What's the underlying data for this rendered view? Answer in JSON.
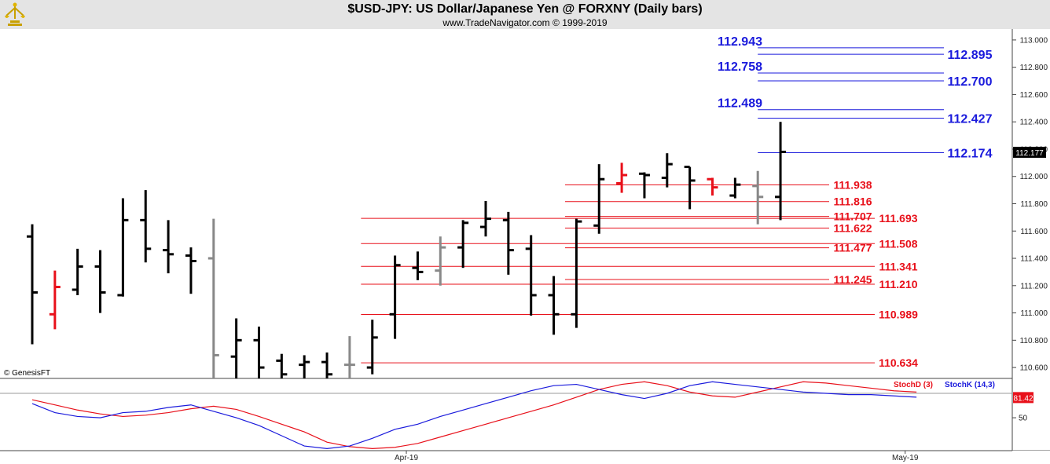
{
  "header": {
    "title": "$USD-JPY:  US Dollar/Japanese Yen @ FORXNY  (Daily bars)",
    "subtitle": "www.TradeNavigator.com © 1999-2019"
  },
  "watermark": "© GenesisFT",
  "colors": {
    "up": "#000000",
    "down": "#e8101a",
    "neutral": "#888888",
    "blue_level": "#1a1adc",
    "red_level": "#e8101a",
    "stochd": "#e8101a",
    "stochk": "#1a1adc"
  },
  "chart_data": {
    "type": "ohlc",
    "title": "$USD-JPY:  US Dollar/Japanese Yen @ FORXNY  (Daily bars)",
    "y_range": [
      110.52,
      113.08
    ],
    "y_ticks": [
      "113.000",
      "112.800",
      "112.600",
      "112.400",
      "112.200",
      "112.000",
      "111.800",
      "111.600",
      "111.400",
      "111.200",
      "111.000",
      "110.800",
      "110.600"
    ],
    "last_price": "112.177",
    "x_labels": [
      {
        "text": "Apr-19",
        "bar_index": 16.5
      },
      {
        "text": "May-19",
        "bar_index": 38.5
      }
    ],
    "bars": [
      {
        "o": 111.56,
        "h": 111.65,
        "l": 110.77,
        "c": 111.15,
        "color": "up"
      },
      {
        "o": 110.99,
        "h": 111.31,
        "l": 110.88,
        "c": 111.19,
        "color": "down"
      },
      {
        "o": 111.17,
        "h": 111.47,
        "l": 111.13,
        "c": 111.34,
        "color": "up"
      },
      {
        "o": 111.34,
        "h": 111.46,
        "l": 111.0,
        "c": 111.15,
        "color": "up"
      },
      {
        "o": 111.13,
        "h": 111.84,
        "l": 111.12,
        "c": 111.68,
        "color": "up"
      },
      {
        "o": 111.68,
        "h": 111.9,
        "l": 111.37,
        "c": 111.47,
        "color": "up"
      },
      {
        "o": 111.46,
        "h": 111.68,
        "l": 111.29,
        "c": 111.43,
        "color": "up"
      },
      {
        "o": 111.42,
        "h": 111.48,
        "l": 111.14,
        "c": 111.38,
        "color": "up"
      },
      {
        "o": 111.4,
        "h": 111.69,
        "l": 110.45,
        "c": 110.69,
        "color": "neutral"
      },
      {
        "o": 110.68,
        "h": 110.96,
        "l": 110.3,
        "c": 110.8,
        "color": "up"
      },
      {
        "o": 110.8,
        "h": 110.9,
        "l": 110.4,
        "c": 110.6,
        "color": "up"
      },
      {
        "o": 110.65,
        "h": 110.7,
        "l": 110.3,
        "c": 110.55,
        "color": "up"
      },
      {
        "o": 110.62,
        "h": 110.69,
        "l": 110.52,
        "c": 110.64,
        "color": "up"
      },
      {
        "o": 110.64,
        "h": 110.71,
        "l": 110.48,
        "c": 110.55,
        "color": "up"
      },
      {
        "o": 110.62,
        "h": 110.83,
        "l": 110.52,
        "c": 110.62,
        "color": "neutral"
      },
      {
        "o": 110.6,
        "h": 110.95,
        "l": 110.55,
        "c": 110.82,
        "color": "up"
      },
      {
        "o": 110.99,
        "h": 111.42,
        "l": 110.81,
        "c": 111.35,
        "color": "up"
      },
      {
        "o": 111.33,
        "h": 111.45,
        "l": 111.24,
        "c": 111.3,
        "color": "up"
      },
      {
        "o": 111.31,
        "h": 111.56,
        "l": 111.2,
        "c": 111.48,
        "color": "neutral"
      },
      {
        "o": 111.48,
        "h": 111.68,
        "l": 111.33,
        "c": 111.66,
        "color": "up"
      },
      {
        "o": 111.63,
        "h": 111.82,
        "l": 111.56,
        "c": 111.69,
        "color": "up"
      },
      {
        "o": 111.68,
        "h": 111.74,
        "l": 111.28,
        "c": 111.46,
        "color": "up"
      },
      {
        "o": 111.47,
        "h": 111.57,
        "l": 110.98,
        "c": 111.13,
        "color": "up"
      },
      {
        "o": 111.13,
        "h": 111.27,
        "l": 110.84,
        "c": 110.99,
        "color": "up"
      },
      {
        "o": 110.99,
        "h": 111.69,
        "l": 110.89,
        "c": 111.67,
        "color": "up"
      },
      {
        "o": 111.64,
        "h": 112.09,
        "l": 111.58,
        "c": 111.98,
        "color": "up"
      },
      {
        "o": 111.95,
        "h": 112.1,
        "l": 111.88,
        "c": 112.01,
        "color": "down"
      },
      {
        "o": 112.02,
        "h": 112.03,
        "l": 111.84,
        "c": 112.01,
        "color": "up"
      },
      {
        "o": 111.99,
        "h": 112.17,
        "l": 111.92,
        "c": 112.09,
        "color": "up"
      },
      {
        "o": 112.07,
        "h": 112.07,
        "l": 111.76,
        "c": 111.97,
        "color": "up"
      },
      {
        "o": 111.98,
        "h": 111.99,
        "l": 111.86,
        "c": 111.92,
        "color": "down"
      },
      {
        "o": 111.86,
        "h": 111.99,
        "l": 111.84,
        "c": 111.94,
        "color": "up"
      },
      {
        "o": 111.93,
        "h": 112.04,
        "l": 111.65,
        "c": 111.85,
        "color": "neutral"
      },
      {
        "o": 111.85,
        "h": 112.4,
        "l": 111.68,
        "c": 112.18,
        "color": "up"
      }
    ],
    "blue_levels": [
      {
        "value": 112.943,
        "label": "112.943",
        "side": "left",
        "start_bar": 32
      },
      {
        "value": 112.895,
        "label": "112.895",
        "side": "right",
        "start_bar": 32
      },
      {
        "value": 112.758,
        "label": "112.758",
        "side": "left",
        "start_bar": 32
      },
      {
        "value": 112.7,
        "label": "112.700",
        "side": "right",
        "start_bar": 32
      },
      {
        "value": 112.489,
        "label": "112.489",
        "side": "left",
        "start_bar": 32
      },
      {
        "value": 112.427,
        "label": "112.427",
        "side": "right",
        "start_bar": 32
      },
      {
        "value": 112.174,
        "label": "112.174",
        "side": "right",
        "start_bar": 32
      }
    ],
    "red_levels": [
      {
        "value": 111.938,
        "label": "111.938",
        "side": "left",
        "start_bar": 23.5
      },
      {
        "value": 111.816,
        "label": "111.816",
        "side": "left",
        "start_bar": 23.5
      },
      {
        "value": 111.707,
        "label": "111.707",
        "side": "left",
        "start_bar": 23.5
      },
      {
        "value": 111.693,
        "label": "111.693",
        "side": "right",
        "start_bar": 14.5
      },
      {
        "value": 111.622,
        "label": "111.622",
        "side": "left",
        "start_bar": 23.5
      },
      {
        "value": 111.508,
        "label": "111.508",
        "side": "right",
        "start_bar": 14.5
      },
      {
        "value": 111.477,
        "label": "111.477",
        "side": "left",
        "start_bar": 23.5
      },
      {
        "value": 111.341,
        "label": "111.341",
        "side": "right",
        "start_bar": 14.5
      },
      {
        "value": 111.245,
        "label": "111.245",
        "side": "left",
        "start_bar": 23.5
      },
      {
        "value": 111.21,
        "label": "111.210",
        "side": "right",
        "start_bar": 14.5
      },
      {
        "value": 110.989,
        "label": "110.989",
        "side": "right",
        "start_bar": 14.5
      },
      {
        "value": 110.634,
        "label": "110.634",
        "side": "right",
        "start_bar": 14.5
      }
    ],
    "stochastic": {
      "y_range": [
        0,
        110
      ],
      "y_ticks": [
        "50"
      ],
      "last_value": "81.42",
      "legend": [
        {
          "name": "StochD (3)",
          "color": "stochd"
        },
        {
          "name": "StochK (14,3)",
          "color": "stochk"
        }
      ],
      "stochd": [
        78,
        70,
        62,
        56,
        52,
        54,
        58,
        64,
        68,
        63,
        52,
        40,
        28,
        12,
        5,
        2,
        4,
        10,
        20,
        30,
        40,
        50,
        60,
        70,
        82,
        94,
        102,
        106,
        100,
        90,
        84,
        82,
        90,
        98,
        106,
        104,
        100,
        96,
        92,
        90
      ],
      "stochk": [
        72,
        58,
        52,
        50,
        58,
        60,
        66,
        70,
        60,
        50,
        38,
        22,
        6,
        2,
        6,
        18,
        32,
        40,
        52,
        62,
        72,
        82,
        92,
        100,
        102,
        94,
        86,
        80,
        88,
        100,
        106,
        102,
        98,
        94,
        90,
        88,
        86,
        86,
        84,
        82
      ]
    }
  }
}
